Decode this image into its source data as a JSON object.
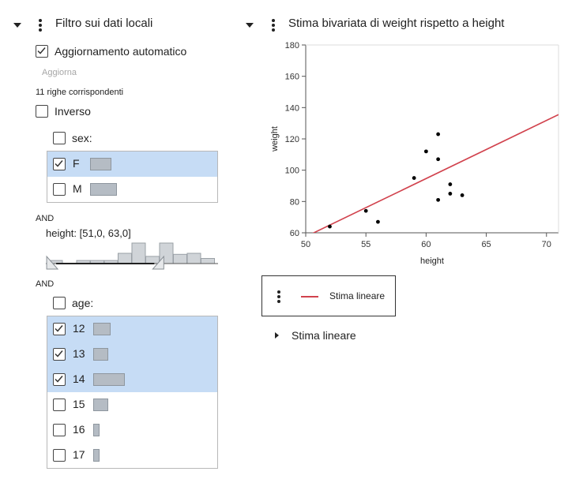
{
  "filter_panel": {
    "title": "Filtro sui dati locali",
    "auto_update_label": "Aggiornamento automatico",
    "auto_update_checked": true,
    "update_button": "Aggiorna",
    "matching_rows": "11 righe corrispondenti",
    "inverse_label": "Inverso",
    "sex_label": "sex:",
    "sex_items": [
      {
        "label": "F",
        "checked": true,
        "count_fraction": 0.6
      },
      {
        "label": "M",
        "checked": false,
        "count_fraction": 0.75
      }
    ],
    "and_label_1": "AND",
    "height_label": "height: [51,0, 63,0]",
    "height_histogram": [
      0.15,
      0.0,
      0.15,
      0.15,
      0.15,
      0.5,
      1.0,
      0.35,
      1.0,
      0.45,
      0.5,
      0.25
    ],
    "height_range_fraction": [
      0.06,
      0.63
    ],
    "and_label_2": "AND",
    "age_label": "age:",
    "age_items": [
      {
        "label": "12",
        "checked": true,
        "count_fraction": 0.55
      },
      {
        "label": "13",
        "checked": true,
        "count_fraction": 0.48
      },
      {
        "label": "14",
        "checked": true,
        "count_fraction": 1.0
      },
      {
        "label": "15",
        "checked": false,
        "count_fraction": 0.48
      },
      {
        "label": "16",
        "checked": false,
        "count_fraction": 0.2
      },
      {
        "label": "17",
        "checked": false,
        "count_fraction": 0.2
      }
    ]
  },
  "report": {
    "title": "Stima bivariata di weight rispetto a height",
    "legend_label": "Stima lineare",
    "linear_fit_outline": "Stima lineare",
    "colors": {
      "fit_line": "#d1424d",
      "points": "#000000",
      "selection": "#c6dcf5"
    }
  },
  "chart_data": {
    "type": "scatter",
    "title": "",
    "xlabel": "height",
    "ylabel": "weight",
    "xlim": [
      50,
      71
    ],
    "ylim": [
      60,
      180
    ],
    "xticks": [
      50,
      55,
      60,
      65,
      70
    ],
    "yticks": [
      60,
      80,
      100,
      120,
      140,
      160,
      180
    ],
    "grid": false,
    "points": [
      {
        "x": 52,
        "y": 64
      },
      {
        "x": 55,
        "y": 74
      },
      {
        "x": 56,
        "y": 67
      },
      {
        "x": 59,
        "y": 95
      },
      {
        "x": 60,
        "y": 112
      },
      {
        "x": 61,
        "y": 123
      },
      {
        "x": 61,
        "y": 107
      },
      {
        "x": 61,
        "y": 81
      },
      {
        "x": 62,
        "y": 91
      },
      {
        "x": 62,
        "y": 85
      },
      {
        "x": 63,
        "y": 84
      }
    ],
    "fit_line": {
      "name": "Stima lineare",
      "x": [
        50.4,
        71
      ],
      "y": [
        59,
        135.5
      ]
    }
  }
}
